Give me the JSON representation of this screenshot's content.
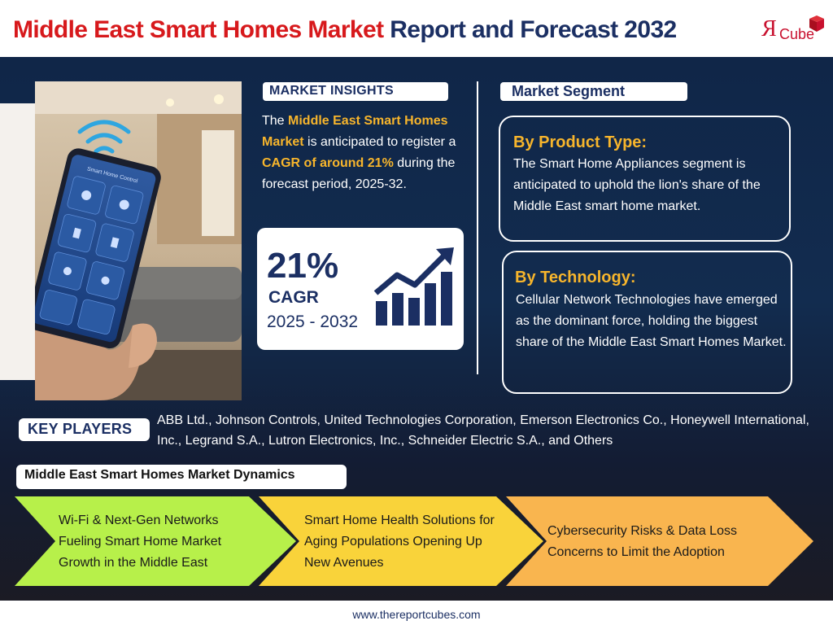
{
  "header": {
    "title_red": "Middle East Smart Homes Market",
    "title_blue": "Report and Forecast 2032",
    "logo_letter": "R",
    "logo_text": "Cube"
  },
  "insights": {
    "label": "MARKET INSIGHTS",
    "p1": "The ",
    "p2": "Middle East Smart Homes Market",
    "p3": " is anticipated to register a ",
    "p4": "CAGR of around 21%",
    "p5": " during the forecast period, 2025-32."
  },
  "cagr": {
    "value": "21%",
    "label": "CAGR",
    "years": "2025 - 2032"
  },
  "segment": {
    "label": "Market Segment",
    "cards": [
      {
        "title": "By Product Type:",
        "text": "The Smart Home Appliances segment is anticipated to uphold the lion's share of the Middle East smart home market."
      },
      {
        "title": "By Technology:",
        "text": "Cellular Network Technologies have emerged as the dominant force, holding the biggest share of the Middle East Smart Homes Market."
      }
    ]
  },
  "players": {
    "label": "KEY PLAYERS",
    "text": "ABB Ltd., Johnson Controls, United Technologies Corporation, Emerson Electronics Co., Honeywell International, Inc., Legrand S.A., Lutron Electronics, Inc., Schneider Electric S.A., and Others"
  },
  "dynamics": {
    "label": "Middle East Smart Homes Market Dynamics",
    "items": [
      {
        "text": "Wi-Fi & Next-Gen Networks Fueling Smart Home Market Growth in the Middle East",
        "color": "#b7f04a"
      },
      {
        "text": "Smart Home Health Solutions for Aging Populations Opening Up New Avenues",
        "color": "#f9d33a"
      },
      {
        "text": "Cybersecurity Risks & Data Loss Concerns to Limit the Adoption",
        "color": "#f9b54f"
      }
    ]
  },
  "photo": {
    "phone_title": "Smart Home Control"
  },
  "footer": {
    "url": "www.thereportcubes.com"
  },
  "colors": {
    "brand_red": "#d7191c",
    "brand_navy": "#1b2f63",
    "accent_yellow": "#f7b52c"
  }
}
